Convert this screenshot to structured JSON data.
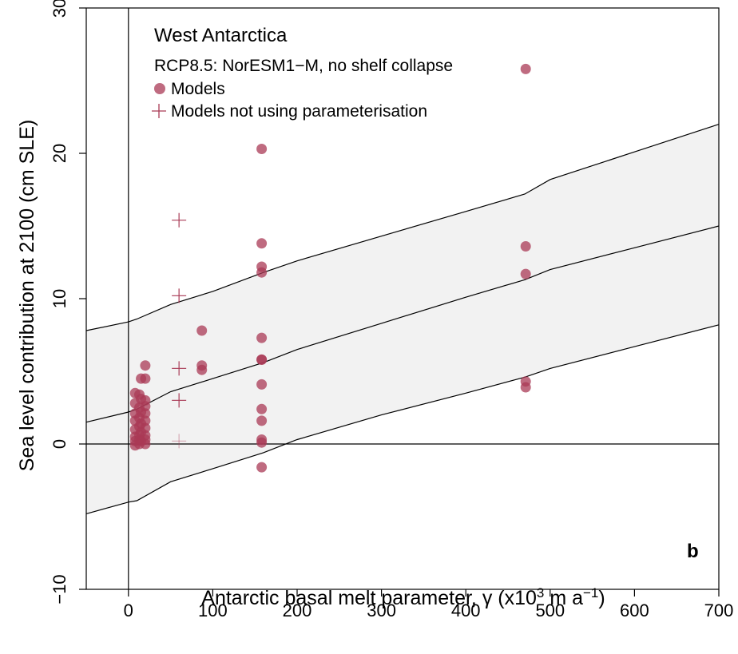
{
  "chart_data": {
    "type": "scatter",
    "panel_label": "b",
    "title": "West Antarctica",
    "subtitle": "RCP8.5: NorESM1−M, no shelf collapse",
    "xlabel": "Antarctic basal melt parameter, γ (x10",
    "xlabel_sup1": "3",
    "xlabel_mid": " m a",
    "xlabel_sup2": "−1",
    "xlabel_end": ")",
    "ylabel": "Sea level contribution at 2100 (cm SLE)",
    "xlim": [
      -50,
      700
    ],
    "ylim": [
      -10,
      30
    ],
    "x_ticks": [
      0,
      100,
      200,
      300,
      400,
      500,
      600,
      700
    ],
    "x_tick_labels": [
      "0",
      "100",
      "200",
      "300",
      "400",
      "500",
      "600",
      "700"
    ],
    "y_ticks": [
      -10,
      0,
      10,
      20,
      30
    ],
    "y_tick_labels": [
      "−10",
      "0",
      "10",
      "20",
      "30"
    ],
    "reference_lines": {
      "x": 0,
      "y": 0
    },
    "legend": {
      "position": "top-left",
      "entries": [
        {
          "label": "Models",
          "marker": "circle"
        },
        {
          "label": "Models not using parameterisation",
          "marker": "plus"
        }
      ]
    },
    "colors": {
      "points": "#a93a55",
      "band_fill": "#f2f2f2",
      "lines": "#000000"
    },
    "emulator": {
      "x": [
        -50,
        0,
        10,
        50,
        100,
        160,
        200,
        300,
        400,
        470,
        500,
        600,
        700
      ],
      "mean": [
        1.5,
        2.2,
        2.4,
        3.6,
        4.5,
        5.6,
        6.5,
        8.3,
        10.1,
        11.3,
        12.0,
        13.5,
        15.0
      ],
      "upper": [
        7.8,
        8.4,
        8.6,
        9.6,
        10.5,
        11.8,
        12.6,
        14.3,
        16.0,
        17.2,
        18.2,
        20.1,
        22.0
      ],
      "lower": [
        -4.8,
        -4.0,
        -3.9,
        -2.6,
        -1.7,
        -0.6,
        0.3,
        2.0,
        3.5,
        4.6,
        5.2,
        6.7,
        8.2
      ]
    },
    "series": [
      {
        "name": "Models",
        "marker": "circle",
        "points": [
          [
            8,
            3.5
          ],
          [
            8,
            2.8
          ],
          [
            8,
            2.1
          ],
          [
            8,
            1.6
          ],
          [
            8,
            1.0
          ],
          [
            8,
            0.5
          ],
          [
            8,
            0.2
          ],
          [
            8,
            -0.1
          ],
          [
            13,
            3.4
          ],
          [
            13,
            2.5
          ],
          [
            13,
            1.8
          ],
          [
            13,
            1.2
          ],
          [
            13,
            0.6
          ],
          [
            13,
            0.3
          ],
          [
            13,
            0.0
          ],
          [
            15,
            4.5
          ],
          [
            15,
            3.1
          ],
          [
            15,
            2.2
          ],
          [
            15,
            1.4
          ],
          [
            15,
            0.8
          ],
          [
            15,
            0.2
          ],
          [
            20,
            5.4
          ],
          [
            20,
            4.5
          ],
          [
            20,
            3.0
          ],
          [
            20,
            2.6
          ],
          [
            20,
            2.1
          ],
          [
            20,
            1.6
          ],
          [
            20,
            1.1
          ],
          [
            20,
            0.6
          ],
          [
            20,
            0.3
          ],
          [
            20,
            0.0
          ],
          [
            87,
            7.8
          ],
          [
            87,
            5.4
          ],
          [
            87,
            5.1
          ],
          [
            158,
            20.3
          ],
          [
            158,
            13.8
          ],
          [
            158,
            12.2
          ],
          [
            158,
            11.8
          ],
          [
            158,
            7.3
          ],
          [
            158,
            5.8
          ],
          [
            158,
            5.8
          ],
          [
            158,
            4.1
          ],
          [
            158,
            2.4
          ],
          [
            158,
            1.6
          ],
          [
            158,
            0.3
          ],
          [
            158,
            0.1
          ],
          [
            158,
            -1.6
          ],
          [
            471,
            25.8
          ],
          [
            471,
            13.6
          ],
          [
            471,
            11.7
          ],
          [
            471,
            4.3
          ],
          [
            471,
            3.9
          ]
        ]
      },
      {
        "name": "Models not using parameterisation",
        "marker": "plus",
        "points": [
          [
            60,
            15.4
          ],
          [
            60,
            10.2
          ],
          [
            60,
            5.2
          ],
          [
            60,
            3.0
          ],
          [
            60,
            0.2
          ]
        ]
      }
    ]
  }
}
